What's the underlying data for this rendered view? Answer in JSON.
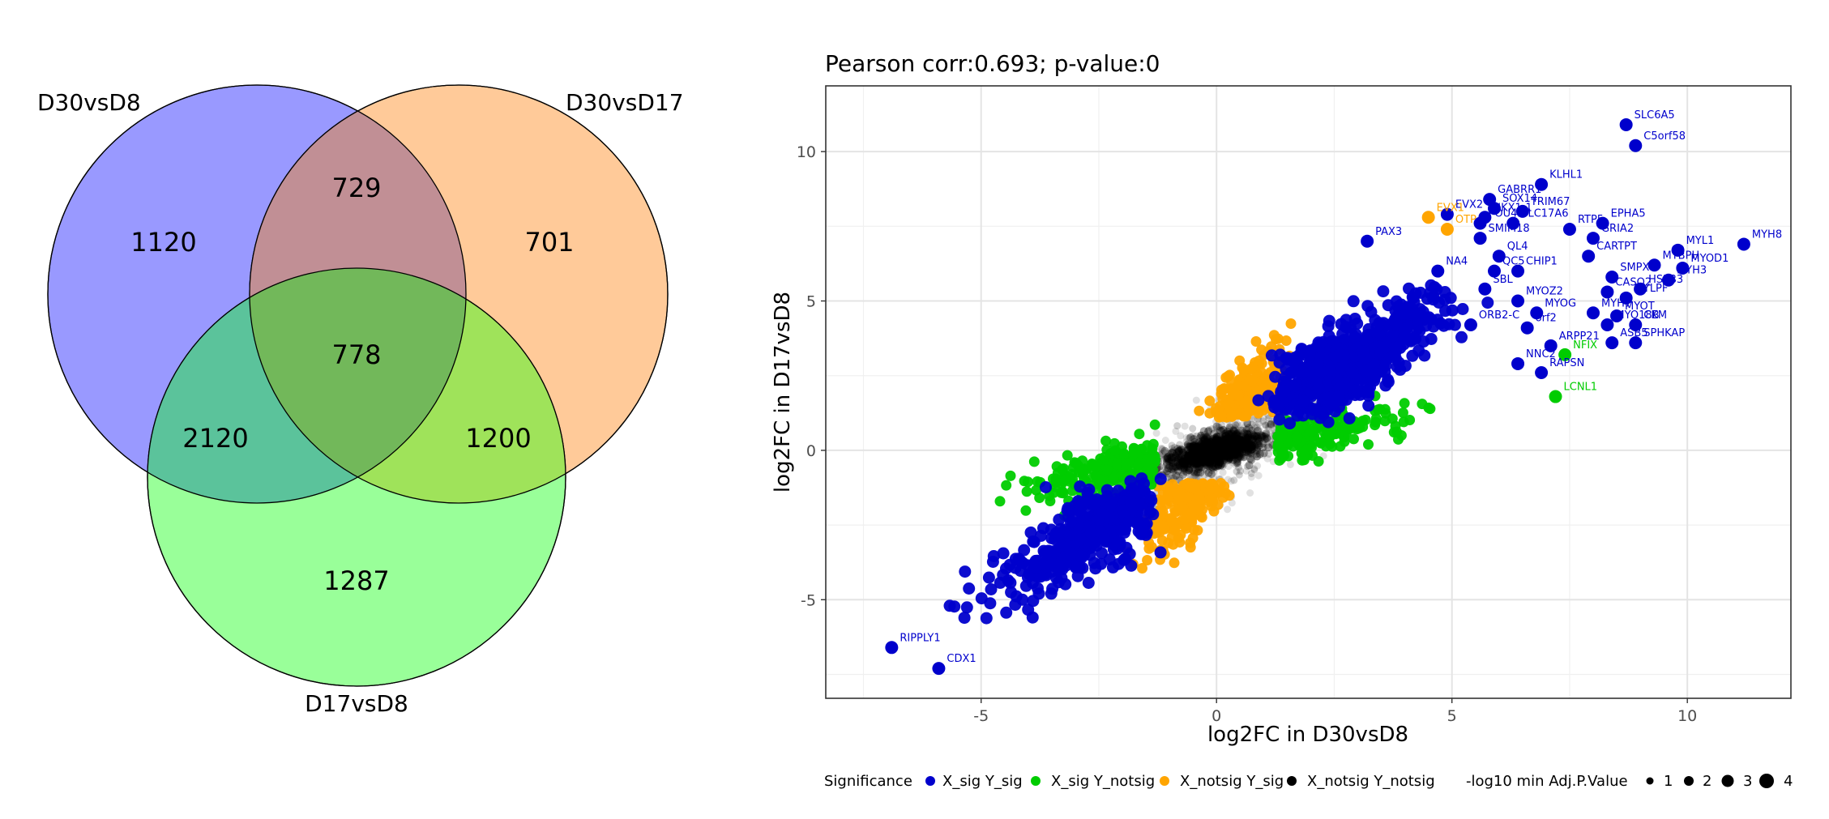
{
  "chart_data": [
    {
      "type": "venn",
      "sets": [
        "D30vsD8",
        "D30vsD17",
        "D17vsD8"
      ],
      "regions": [
        {
          "sets": [
            "D30vsD8"
          ],
          "label": "1120"
        },
        {
          "sets": [
            "D30vsD17"
          ],
          "label": "701"
        },
        {
          "sets": [
            "D17vsD8"
          ],
          "label": "1287"
        },
        {
          "sets": [
            "D30vsD8",
            "D30vsD17"
          ],
          "label": "729"
        },
        {
          "sets": [
            "D30vsD8",
            "D17vsD8"
          ],
          "label": "2120"
        },
        {
          "sets": [
            "D30vsD17",
            "D17vsD8"
          ],
          "label": "1200"
        },
        {
          "sets": [
            "D30vsD8",
            "D30vsD17",
            "D17vsD8"
          ],
          "label": "778"
        }
      ],
      "colors": {
        "D30vsD8": "#9999ff",
        "D30vsD17": "#ffca99",
        "D17vsD8": "#99ff99"
      }
    },
    {
      "type": "scatter",
      "title": "Pearson corr:0.693; p-value:0",
      "xlabel": "log2FC in D30vsD8",
      "ylabel": "log2FC in D17vsD8",
      "xlim": [
        -8.3,
        12.2
      ],
      "ylim": [
        -8.3,
        12.2
      ],
      "xticks": [
        -5,
        0,
        5,
        10
      ],
      "yticks": [
        -5,
        0,
        5,
        10
      ],
      "grid": true,
      "legend_position": "bottom",
      "legend": {
        "color_title": "Significance",
        "color_items": [
          {
            "label": "X_sig Y_sig",
            "color": "#0000cc"
          },
          {
            "label": "X_sig Y_notsig",
            "color": "#00cc00"
          },
          {
            "label": "X_notsig Y_sig",
            "color": "#ffa500"
          },
          {
            "label": "X_notsig Y_notsig",
            "color": "#000000"
          }
        ],
        "size_title": "-log10 min Adj.P.Value",
        "size_items": [
          "1",
          "2",
          "3",
          "4"
        ]
      },
      "labeled_points": [
        {
          "label": "SLC6A5",
          "x": 8.7,
          "y": 10.9,
          "group": "X_sig Y_sig"
        },
        {
          "label": "C5orf58",
          "x": 8.9,
          "y": 10.2,
          "group": "X_sig Y_sig"
        },
        {
          "label": "MYH8",
          "x": 11.2,
          "y": 6.9,
          "group": "X_sig Y_sig"
        },
        {
          "label": "KLHL1",
          "x": 6.9,
          "y": 8.9,
          "group": "X_sig Y_sig"
        },
        {
          "label": "GABRR1",
          "x": 5.8,
          "y": 8.4,
          "group": "X_sig Y_sig"
        },
        {
          "label": "SOX14",
          "x": 5.9,
          "y": 8.1,
          "group": "X_sig Y_sig"
        },
        {
          "label": "NKX1-1",
          "x": 5.7,
          "y": 7.8,
          "group": "X_sig Y_sig"
        },
        {
          "label": "TRIM67",
          "x": 6.5,
          "y": 8.0,
          "group": "X_sig Y_sig"
        },
        {
          "label": "EVX2",
          "x": 4.9,
          "y": 7.9,
          "group": "X_sig Y_sig"
        },
        {
          "label": "POU4F",
          "x": 5.6,
          "y": 7.6,
          "group": "X_sig Y_sig"
        },
        {
          "label": "SLC17A6",
          "x": 6.3,
          "y": 7.6,
          "group": "X_sig Y_sig"
        },
        {
          "label": "EPHA5",
          "x": 8.2,
          "y": 7.6,
          "group": "X_sig Y_sig"
        },
        {
          "label": "EVX1",
          "x": 4.5,
          "y": 7.8,
          "group": "X_notsig Y_sig"
        },
        {
          "label": "OTP",
          "x": 4.9,
          "y": 7.4,
          "group": "X_notsig Y_sig"
        },
        {
          "label": "SMIM18",
          "x": 5.6,
          "y": 7.1,
          "group": "X_sig Y_sig"
        },
        {
          "label": "RTP5",
          "x": 7.5,
          "y": 7.4,
          "group": "X_sig Y_sig"
        },
        {
          "label": "GRIA2",
          "x": 8.0,
          "y": 7.1,
          "group": "X_sig Y_sig"
        },
        {
          "label": "PAX3",
          "x": 3.2,
          "y": 7.0,
          "group": "X_sig Y_sig"
        },
        {
          "label": "MYL1",
          "x": 9.8,
          "y": 6.7,
          "group": "X_sig Y_sig"
        },
        {
          "label": "CARTPT",
          "x": 7.9,
          "y": 6.5,
          "group": "X_sig Y_sig"
        },
        {
          "label": "MYBPH",
          "x": 9.3,
          "y": 6.2,
          "group": "X_sig Y_sig"
        },
        {
          "label": "MYOD1",
          "x": 9.9,
          "y": 6.1,
          "group": "X_sig Y_sig"
        },
        {
          "label": "QL4",
          "x": 6.0,
          "y": 6.5,
          "group": "X_sig Y_sig"
        },
        {
          "label": "NA4",
          "x": 4.7,
          "y": 6.0,
          "group": "X_sig Y_sig"
        },
        {
          "label": "QC5",
          "x": 5.9,
          "y": 6.0,
          "group": "X_sig Y_sig"
        },
        {
          "label": "CHIP1",
          "x": 6.4,
          "y": 6.0,
          "group": "X_sig Y_sig"
        },
        {
          "label": "SMPX",
          "x": 8.4,
          "y": 5.8,
          "group": "X_sig Y_sig"
        },
        {
          "label": "MYH3",
          "x": 9.6,
          "y": 5.7,
          "group": "X_sig Y_sig"
        },
        {
          "label": "HSPB3",
          "x": 9.0,
          "y": 5.4,
          "group": "X_sig Y_sig"
        },
        {
          "label": "CASQ2",
          "x": 8.3,
          "y": 5.3,
          "group": "X_sig Y_sig"
        },
        {
          "label": "SBL",
          "x": 5.7,
          "y": 5.4,
          "group": "X_sig Y_sig"
        },
        {
          "label": "MYLPF",
          "x": 8.7,
          "y": 5.1,
          "group": "X_sig Y_sig"
        },
        {
          "label": "MYOZ2",
          "x": 6.4,
          "y": 5.0,
          "group": "X_sig Y_sig"
        },
        {
          "label": "MYOG",
          "x": 6.8,
          "y": 4.6,
          "group": "X_sig Y_sig"
        },
        {
          "label": "MYH7",
          "x": 8.0,
          "y": 4.6,
          "group": "X_sig Y_sig"
        },
        {
          "label": "MYOT",
          "x": 8.5,
          "y": 4.5,
          "group": "X_sig Y_sig"
        },
        {
          "label": "ORB2-C",
          "x": 5.4,
          "y": 4.2,
          "group": "X_sig Y_sig"
        },
        {
          "label": "orf2",
          "x": 6.6,
          "y": 4.1,
          "group": "X_sig Y_sig"
        },
        {
          "label": "MYO18B",
          "x": 8.3,
          "y": 4.2,
          "group": "X_sig Y_sig"
        },
        {
          "label": "CKM",
          "x": 8.9,
          "y": 4.2,
          "group": "X_sig Y_sig"
        },
        {
          "label": "ASB5",
          "x": 8.4,
          "y": 3.6,
          "group": "X_sig Y_sig"
        },
        {
          "label": "SPHKAP",
          "x": 8.9,
          "y": 3.6,
          "group": "X_sig Y_sig"
        },
        {
          "label": "ARPP21",
          "x": 7.1,
          "y": 3.5,
          "group": "X_sig Y_sig"
        },
        {
          "label": "NFIX",
          "x": 7.4,
          "y": 3.2,
          "group": "X_sig Y_notsig"
        },
        {
          "label": "NNC2",
          "x": 6.4,
          "y": 2.9,
          "group": "X_sig Y_sig"
        },
        {
          "label": "RAPSN",
          "x": 6.9,
          "y": 2.6,
          "group": "X_sig Y_sig"
        },
        {
          "label": "LCNL1",
          "x": 7.2,
          "y": 1.8,
          "group": "X_sig Y_notsig"
        },
        {
          "label": "RIPPLY1",
          "x": -6.9,
          "y": -6.6,
          "group": "X_sig Y_sig"
        },
        {
          "label": "CDX1",
          "x": -5.9,
          "y": -7.3,
          "group": "X_sig Y_sig"
        }
      ]
    }
  ]
}
